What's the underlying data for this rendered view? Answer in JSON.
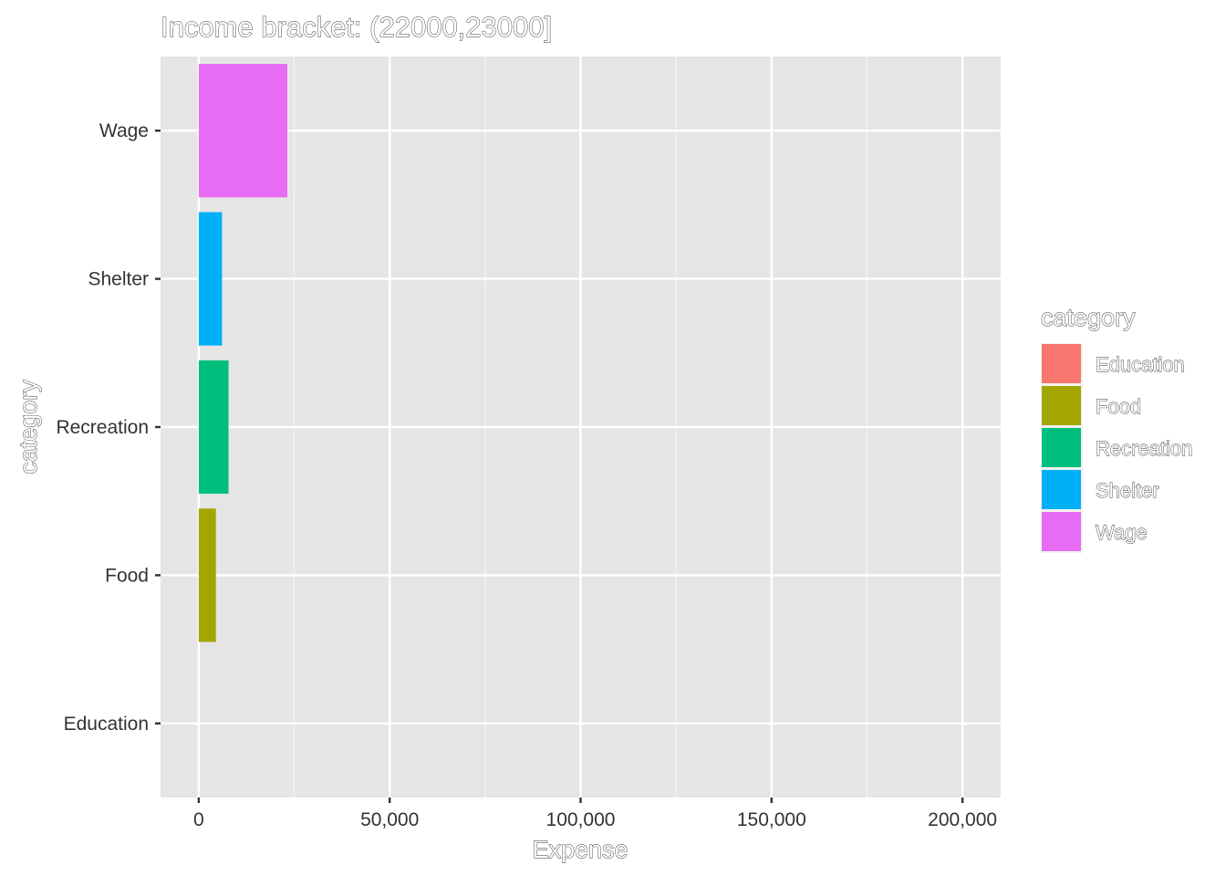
{
  "chart_data": {
    "type": "bar",
    "orientation": "horizontal",
    "title": "Income bracket: (22000,23000]",
    "xlabel": "Expense",
    "ylabel": "category",
    "categories": [
      "Education",
      "Food",
      "Recreation",
      "Shelter",
      "Wage"
    ],
    "values": [
      0,
      4500,
      7800,
      6100,
      23200
    ],
    "colors": [
      "#F8766D",
      "#A3A500",
      "#00BF7D",
      "#00B0F6",
      "#E76BF3"
    ],
    "xlim": [
      -10000,
      210000
    ],
    "xticks": [
      0,
      50000,
      100000,
      150000,
      200000
    ],
    "xtick_labels": [
      "0",
      "50,000",
      "100,000",
      "150,000",
      "200,000"
    ],
    "grid": true,
    "legend": {
      "title": "category",
      "placement": "right",
      "entries": [
        "Education",
        "Food",
        "Recreation",
        "Shelter",
        "Wage"
      ]
    }
  }
}
